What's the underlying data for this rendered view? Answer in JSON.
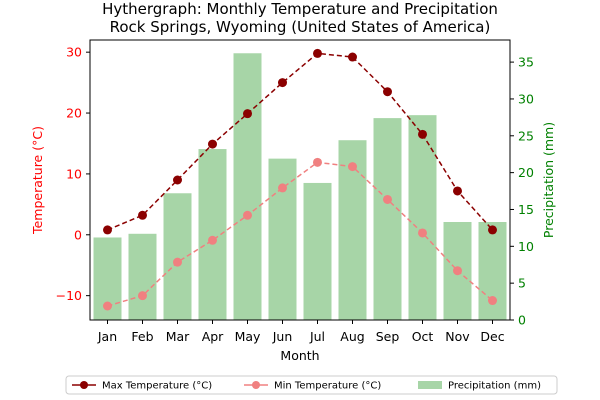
{
  "chart_data": {
    "type": "bar+line",
    "title": "Hythergraph: Monthly Temperature and Precipitation",
    "subtitle": "Rock Springs, Wyoming (United States of America)",
    "xlabel": "Month",
    "ylabel_left": "Temperature (°C)",
    "ylabel_right": "Precipitation (mm)",
    "categories": [
      "Jan",
      "Feb",
      "Mar",
      "Apr",
      "May",
      "Jun",
      "Jul",
      "Aug",
      "Sep",
      "Oct",
      "Nov",
      "Dec"
    ],
    "ylim_left": [
      -14,
      32
    ],
    "ylim_right": [
      0,
      38
    ],
    "yticks_left": [
      -10,
      0,
      10,
      20,
      30
    ],
    "yticks_right": [
      0,
      5,
      10,
      15,
      20,
      25,
      30,
      35
    ],
    "series": [
      {
        "name": "Max Temperature (°C)",
        "axis": "left",
        "kind": "line",
        "color": "#8b0000",
        "values": [
          0.8,
          3.2,
          9.0,
          14.9,
          19.9,
          25.0,
          29.8,
          29.2,
          23.5,
          16.5,
          7.2,
          0.8
        ]
      },
      {
        "name": "Min Temperature (°C)",
        "axis": "left",
        "kind": "line",
        "color": "#f08080",
        "values": [
          -11.7,
          -10.0,
          -4.5,
          -0.9,
          3.2,
          7.7,
          11.9,
          11.2,
          5.8,
          0.3,
          -5.9,
          -10.8
        ]
      },
      {
        "name": "Precipitation (mm)",
        "axis": "right",
        "kind": "bar",
        "color": "#a7d5a7",
        "values": [
          11.2,
          11.7,
          17.2,
          23.2,
          36.2,
          21.9,
          18.6,
          24.4,
          27.4,
          27.8,
          13.3,
          13.3
        ]
      }
    ],
    "left_axis_color": "#ff0000",
    "right_axis_color": "#008000",
    "legend_position": "bottom-center",
    "grid": false
  }
}
